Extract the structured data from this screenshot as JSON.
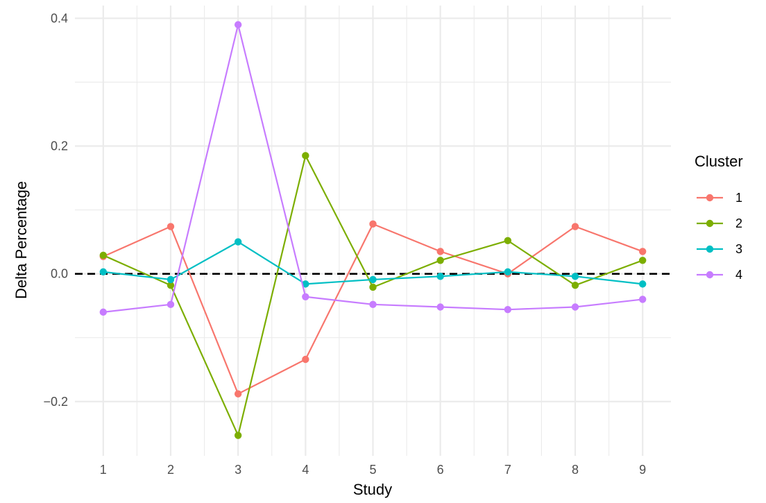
{
  "chart_data": {
    "type": "line",
    "xlabel": "Study",
    "ylabel": "Delta Percentage",
    "x": [
      1,
      2,
      3,
      4,
      5,
      6,
      7,
      8,
      9
    ],
    "x_ticks": [
      "1",
      "2",
      "3",
      "4",
      "5",
      "6",
      "7",
      "8",
      "9"
    ],
    "xlim": [
      0.58,
      9.42
    ],
    "ylim": [
      -0.285,
      0.42
    ],
    "y_ticks": [
      -0.2,
      0.0,
      0.2,
      0.4
    ],
    "y_tick_labels": [
      "−0.2",
      "0.0",
      "0.2",
      "0.4"
    ],
    "reference_line": {
      "y": 0,
      "style": "dashed",
      "color": "#000000"
    },
    "grid": true,
    "legend": {
      "title": "Cluster",
      "position": "right"
    },
    "series": [
      {
        "name": "1",
        "color": "#F8766D",
        "values": [
          0.027,
          0.074,
          -0.188,
          -0.134,
          0.078,
          0.035,
          0.0,
          0.074,
          0.035
        ]
      },
      {
        "name": "2",
        "color": "#7CAE00",
        "values": [
          0.029,
          -0.018,
          -0.253,
          0.185,
          -0.021,
          0.021,
          0.052,
          -0.018,
          0.021
        ]
      },
      {
        "name": "3",
        "color": "#00BFC4",
        "values": [
          0.003,
          -0.009,
          0.05,
          -0.016,
          -0.009,
          -0.004,
          0.003,
          -0.004,
          -0.016
        ]
      },
      {
        "name": "4",
        "color": "#C77CFF",
        "values": [
          -0.06,
          -0.048,
          0.39,
          -0.036,
          -0.048,
          -0.052,
          -0.056,
          -0.052,
          -0.04
        ]
      }
    ]
  }
}
